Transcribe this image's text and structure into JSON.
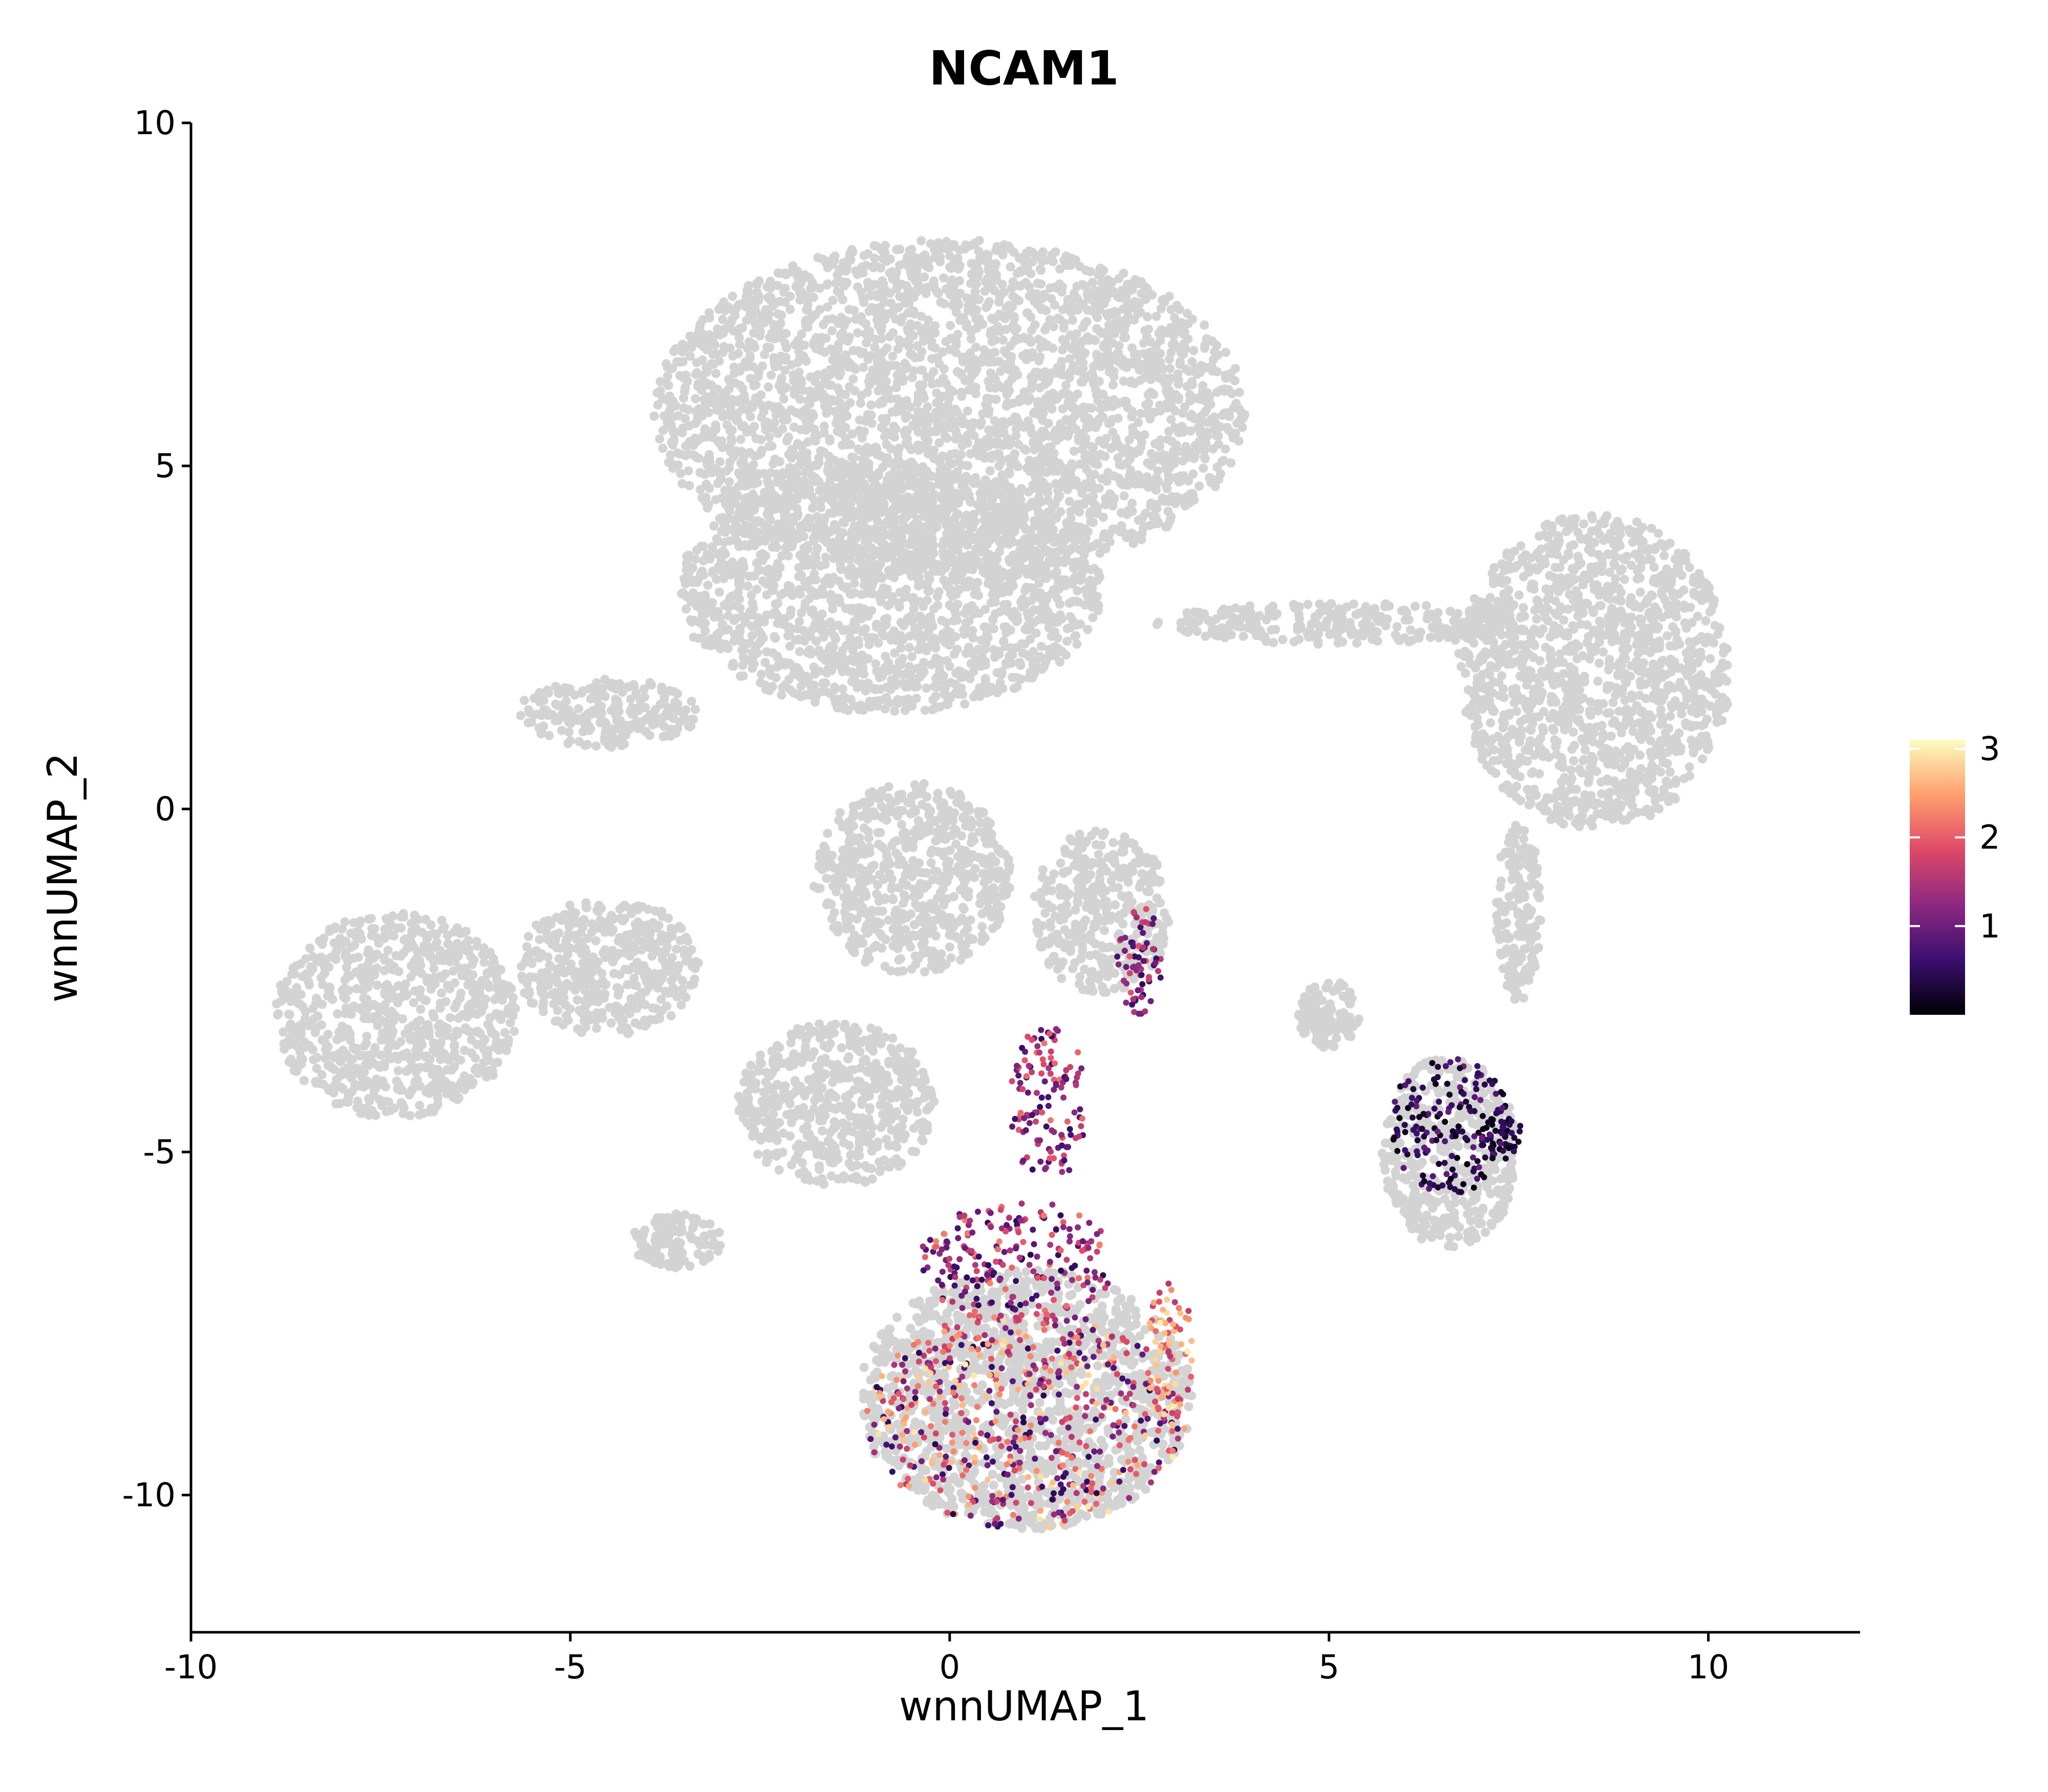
{
  "chart_data": {
    "type": "scatter",
    "title": "NCAM1",
    "xlabel": "wnnUMAP_1",
    "ylabel": "wnnUMAP_2",
    "xlim": [
      -10,
      12
    ],
    "ylim": [
      -12,
      10
    ],
    "x_ticks": [
      -10,
      -5,
      0,
      5,
      10
    ],
    "y_ticks": [
      -10,
      -5,
      0,
      5,
      10
    ],
    "x_tick_labels": [
      "-10",
      "-5",
      "0",
      "5",
      "10"
    ],
    "y_tick_labels": [
      "-10",
      "-5",
      "0",
      "5",
      "10"
    ],
    "grid": false,
    "background_point_color": "#d3d3d3",
    "colorbar": {
      "placement": "right",
      "range": [
        0,
        3.1
      ],
      "ticks": [
        1,
        2,
        3
      ],
      "tick_labels": [
        "1",
        "2",
        "3"
      ],
      "colors": [
        "#000004",
        "#3b0f70",
        "#8c2981",
        "#de4968",
        "#fe9f6d",
        "#fcfdbf"
      ]
    },
    "background_clusters": [
      {
        "cx": 0,
        "cy": 5.8,
        "rx": 3.9,
        "ry": 2.5
      },
      {
        "cx": -0.8,
        "cy": 3.2,
        "rx": 2.8,
        "ry": 1.8
      },
      {
        "cx": -4.5,
        "cy": 1.4,
        "rx": 1.2,
        "ry": 0.5
      },
      {
        "cx": 8.5,
        "cy": 2.0,
        "rx": 1.8,
        "ry": 2.3
      },
      {
        "cx": -7.3,
        "cy": -3.0,
        "rx": 1.6,
        "ry": 1.5
      },
      {
        "cx": -4.5,
        "cy": -2.3,
        "rx": 1.2,
        "ry": 1.0
      },
      {
        "cx": -1.5,
        "cy": -4.3,
        "rx": 1.3,
        "ry": 1.2
      },
      {
        "cx": -3.6,
        "cy": -6.3,
        "rx": 0.6,
        "ry": 0.4
      },
      {
        "cx": 1.0,
        "cy": -8.6,
        "rx": 2.2,
        "ry": 1.9
      },
      {
        "cx": 6.6,
        "cy": -5.0,
        "rx": 0.9,
        "ry": 1.4
      },
      {
        "cx": -0.5,
        "cy": -1.0,
        "rx": 1.3,
        "ry": 1.4
      },
      {
        "cx": 2.0,
        "cy": -1.5,
        "rx": 0.9,
        "ry": 1.2
      },
      {
        "cx": 5.2,
        "cy": 2.7,
        "rx": 2.5,
        "ry": 0.3
      },
      {
        "cx": 7.5,
        "cy": -1.5,
        "rx": 0.3,
        "ry": 1.3
      },
      {
        "cx": 5.0,
        "cy": -3.0,
        "rx": 0.4,
        "ry": 0.5
      }
    ],
    "expressing_clusters": [
      {
        "cx": 1.0,
        "cy": -8.9,
        "rx": 2.1,
        "ry": 1.6,
        "min": 0.4,
        "max": 3.0
      },
      {
        "cx": 2.9,
        "cy": -7.9,
        "rx": 0.3,
        "ry": 1.1,
        "min": 1.5,
        "max": 3.1
      },
      {
        "cx": 0.9,
        "cy": -6.6,
        "rx": 1.3,
        "ry": 0.9,
        "min": 0.4,
        "max": 2.3
      },
      {
        "cx": 7.3,
        "cy": -4.7,
        "rx": 0.25,
        "ry": 0.4,
        "min": 0.05,
        "max": 0.6
      },
      {
        "cx": 6.6,
        "cy": -4.6,
        "rx": 0.8,
        "ry": 1.0,
        "min": 0.05,
        "max": 1.0
      },
      {
        "cx": 1.3,
        "cy": -4.3,
        "rx": 0.5,
        "ry": 1.2,
        "min": 0.5,
        "max": 2.2
      },
      {
        "cx": 2.5,
        "cy": -2.2,
        "rx": 0.3,
        "ry": 0.8,
        "min": 0.5,
        "max": 2.0
      }
    ]
  }
}
